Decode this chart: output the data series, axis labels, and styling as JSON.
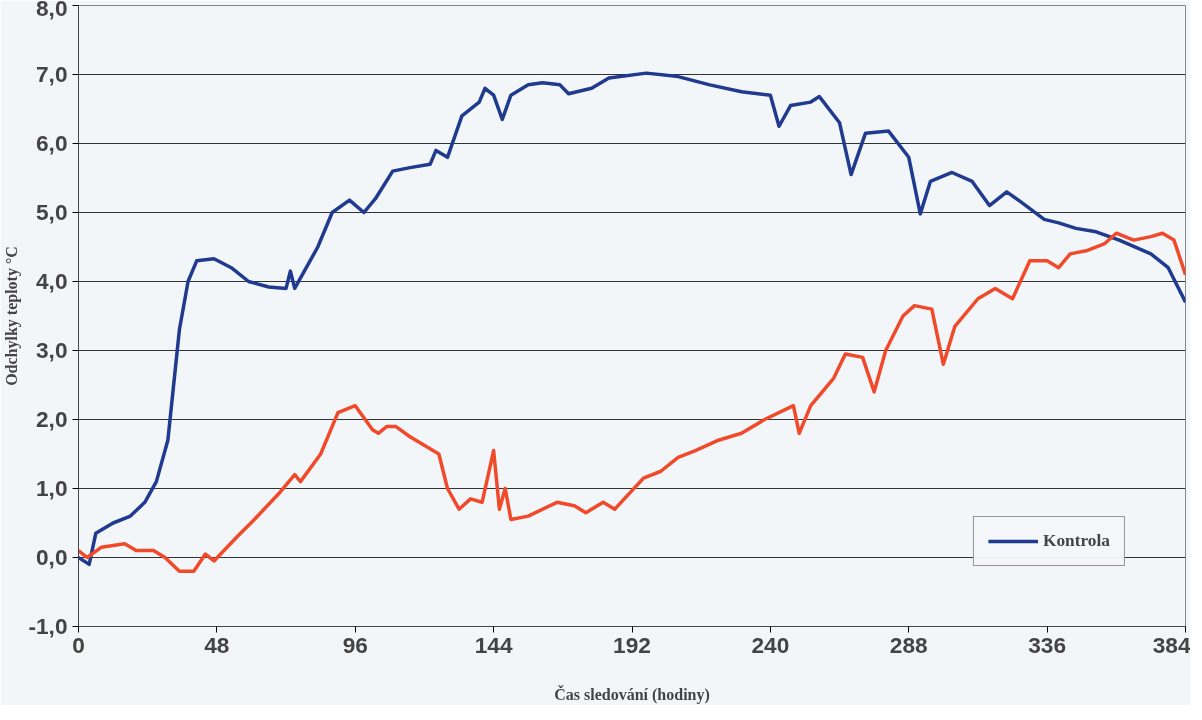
{
  "chart_data": {
    "type": "line",
    "xlabel": "Čas sledování (hodiny)",
    "ylabel": "Odchylky teploty °C",
    "xlim": [
      0,
      384
    ],
    "xticks": [
      0,
      48,
      96,
      144,
      192,
      240,
      288,
      336,
      384
    ],
    "ylim": [
      -1,
      8
    ],
    "yticks": [
      {
        "value": -1,
        "label": "-1,0"
      },
      {
        "value": 0,
        "label": "0,0"
      },
      {
        "value": 1,
        "label": "1,0"
      },
      {
        "value": 2,
        "label": "2,0"
      },
      {
        "value": 3,
        "label": "3,0"
      },
      {
        "value": 4,
        "label": "4,0"
      },
      {
        "value": 5,
        "label": "5,0"
      },
      {
        "value": 6,
        "label": "6,0"
      },
      {
        "value": 7,
        "label": "7,0"
      },
      {
        "value": 8,
        "label": "8,0"
      }
    ],
    "grid": "y",
    "legend": "bottom right",
    "marker": "none",
    "line_style": "solid",
    "series": [
      {
        "name": "Kontrola",
        "color": "#1f3a8f",
        "x": [
          0,
          3.7,
          6,
          12,
          18,
          23,
          27,
          31,
          33,
          35,
          38,
          41,
          47,
          53,
          59,
          66,
          72,
          73.5,
          75,
          83,
          88,
          94,
          99,
          103,
          109,
          115,
          122,
          124,
          128,
          133,
          139,
          141,
          144,
          147,
          150,
          156,
          161,
          167,
          170,
          178,
          184,
          197,
          208,
          219,
          230,
          240,
          243,
          247,
          254,
          257,
          264,
          268,
          273,
          281,
          288,
          292,
          295.5,
          303,
          310,
          316,
          322,
          327,
          335,
          340,
          346,
          353,
          361,
          372,
          378,
          384
        ],
        "values": [
          0,
          -0.1,
          0.35,
          0.5,
          0.6,
          0.8,
          1.1,
          1.7,
          2.5,
          3.3,
          4.0,
          4.3,
          4.33,
          4.2,
          4.0,
          3.92,
          3.9,
          4.15,
          3.9,
          4.5,
          5.0,
          5.18,
          5.0,
          5.2,
          5.6,
          5.65,
          5.7,
          5.9,
          5.8,
          6.4,
          6.6,
          6.8,
          6.7,
          6.35,
          6.7,
          6.85,
          6.88,
          6.85,
          6.72,
          6.8,
          6.95,
          7.02,
          6.97,
          6.85,
          6.75,
          6.7,
          6.25,
          6.55,
          6.6,
          6.68,
          6.3,
          5.55,
          6.15,
          6.18,
          5.8,
          4.98,
          5.45,
          5.58,
          5.45,
          5.1,
          5.3,
          5.15,
          4.9,
          4.85,
          4.77,
          4.72,
          4.6,
          4.4,
          4.2,
          3.7
        ]
      },
      {
        "color": "#f04a2a",
        "x": [
          0,
          3,
          8,
          16,
          20,
          26,
          30,
          35,
          40,
          44,
          47,
          55,
          61,
          70,
          75,
          77,
          84,
          90,
          96,
          102,
          104,
          107,
          110,
          115,
          125,
          128,
          132,
          136,
          140,
          144,
          146,
          148,
          150,
          156,
          166,
          172,
          176,
          182,
          186,
          196,
          202,
          208,
          214,
          222,
          230,
          238,
          248,
          250,
          254,
          262,
          266,
          272,
          276,
          280,
          286,
          290,
          296,
          300,
          304,
          312,
          318,
          324,
          330,
          336,
          340,
          344,
          350,
          356,
          360,
          366,
          372,
          376,
          380,
          384
        ],
        "values": [
          0.1,
          0.0,
          0.15,
          0.2,
          0.1,
          0.1,
          0.0,
          -0.2,
          -0.2,
          0.05,
          -0.05,
          0.3,
          0.55,
          0.95,
          1.2,
          1.1,
          1.5,
          2.1,
          2.2,
          1.85,
          1.8,
          1.9,
          1.9,
          1.75,
          1.5,
          1.0,
          0.7,
          0.85,
          0.8,
          1.55,
          0.7,
          1.0,
          0.55,
          0.6,
          0.8,
          0.75,
          0.65,
          0.8,
          0.7,
          1.15,
          1.25,
          1.45,
          1.55,
          1.7,
          1.8,
          2.0,
          2.2,
          1.8,
          2.2,
          2.6,
          2.95,
          2.9,
          2.4,
          3.0,
          3.5,
          3.65,
          3.6,
          2.8,
          3.35,
          3.75,
          3.9,
          3.75,
          4.3,
          4.3,
          4.2,
          4.4,
          4.45,
          4.55,
          4.7,
          4.6,
          4.65,
          4.7,
          4.6,
          4.1
        ]
      }
    ]
  }
}
